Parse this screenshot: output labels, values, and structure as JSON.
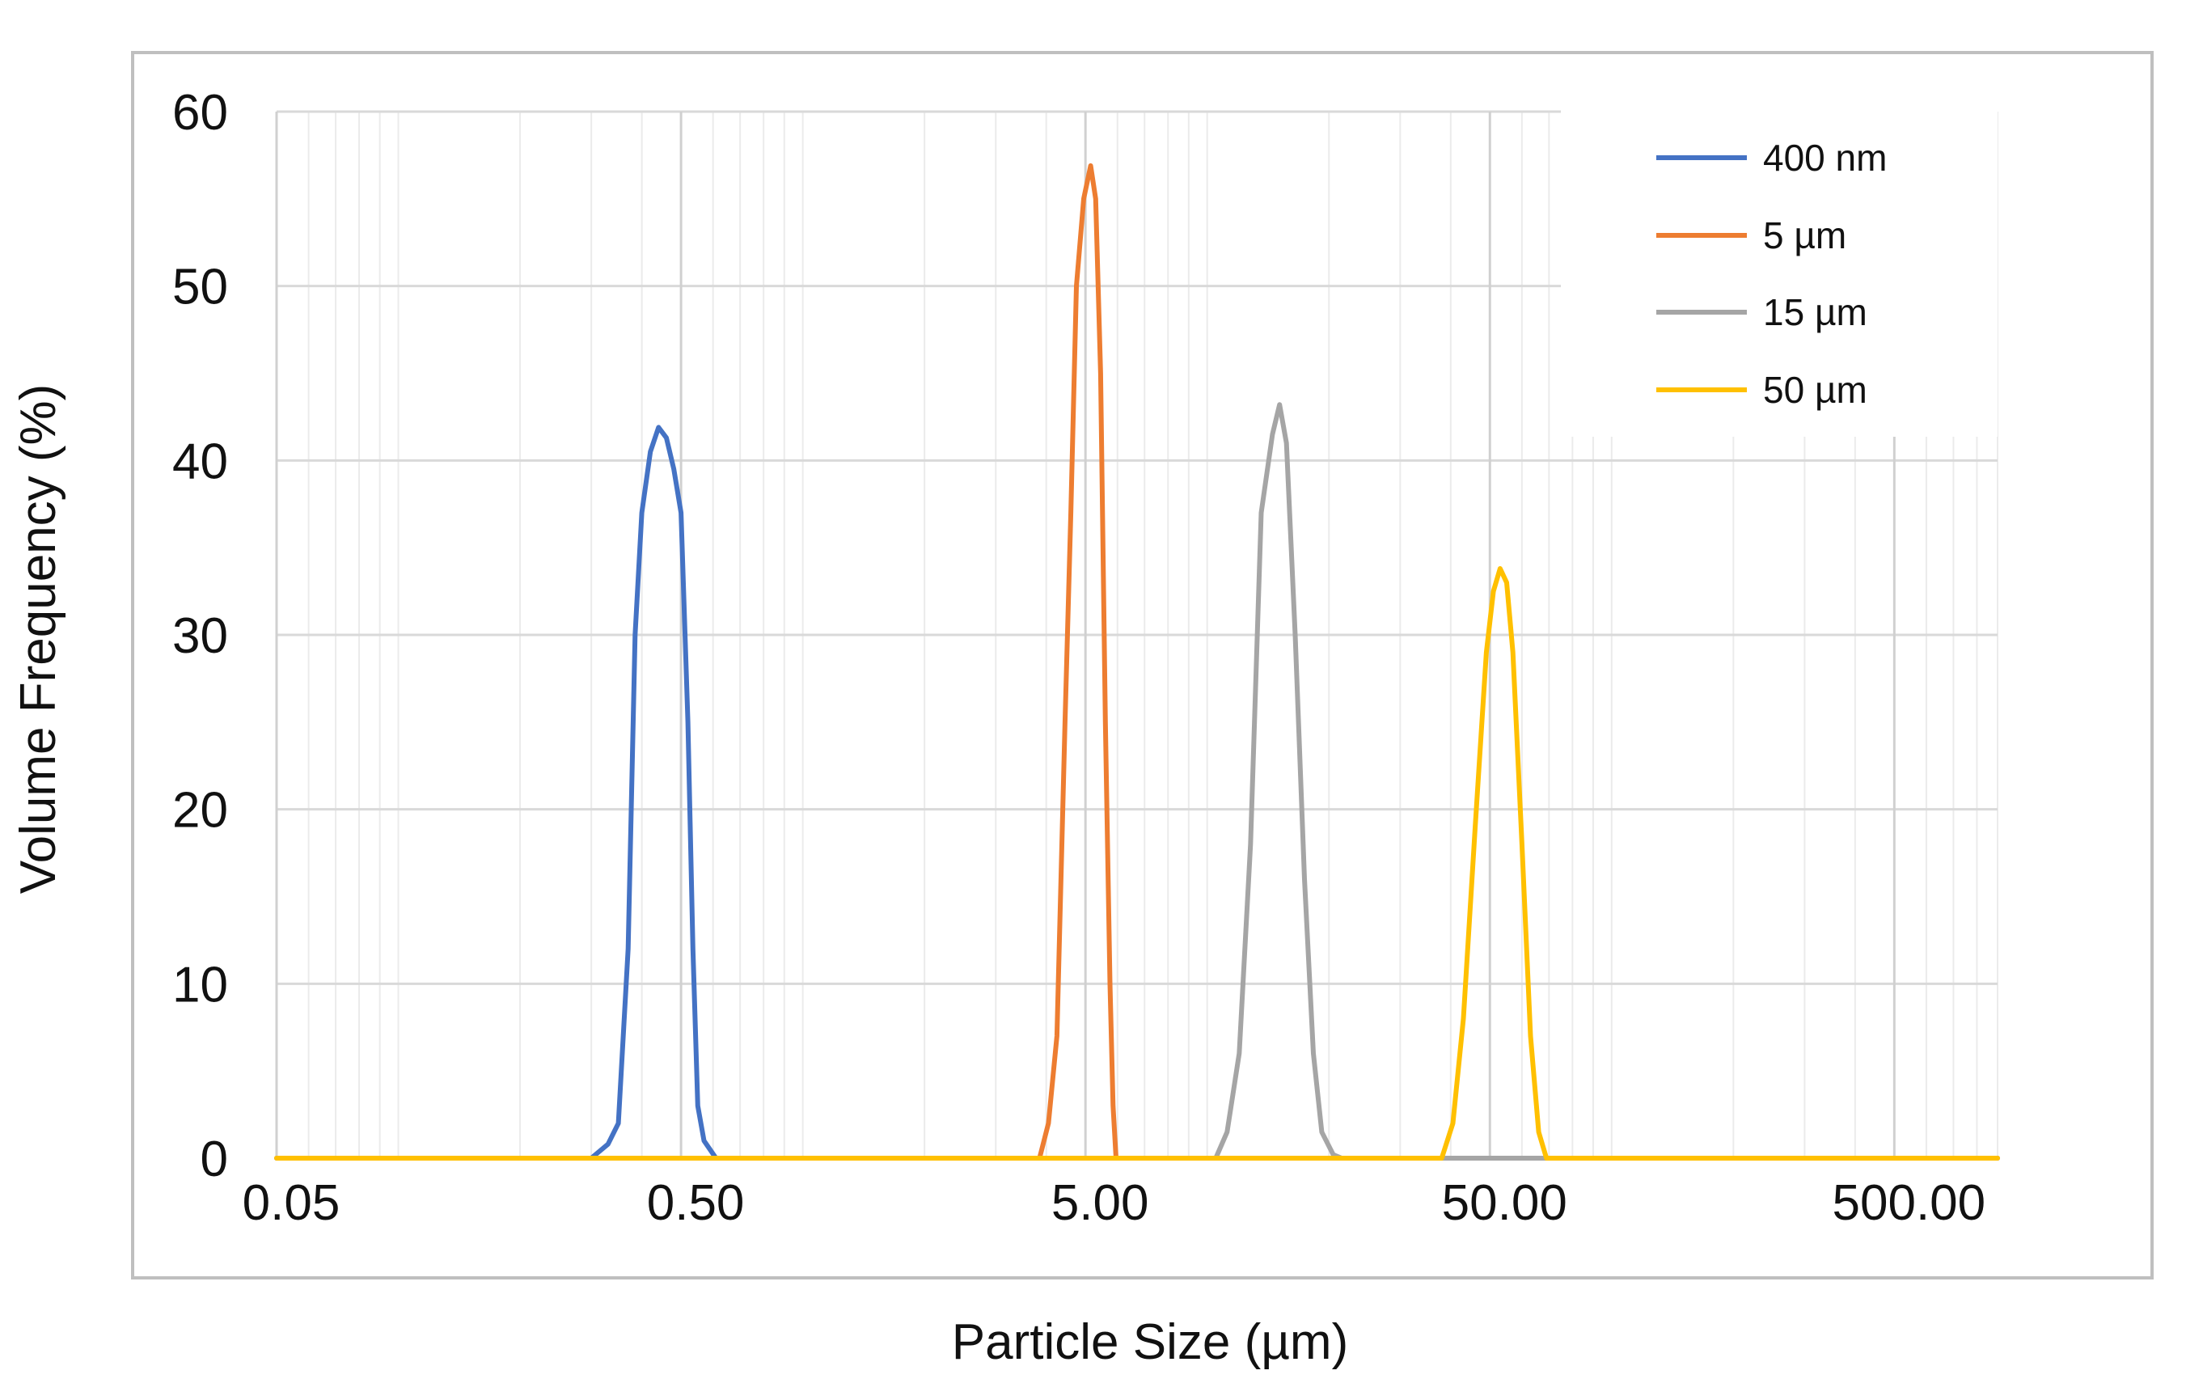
{
  "chart_data": {
    "type": "line",
    "title": "",
    "xlabel": "Particle Size (µm)",
    "ylabel": "Volume Frequency (%)",
    "xscale": "log",
    "xlim": [
      0.05,
      900
    ],
    "ylim": [
      0,
      60
    ],
    "x_ticks": [
      0.05,
      0.5,
      5,
      50,
      500
    ],
    "x_tick_labels": [
      "0.05",
      "0.50",
      "5.00",
      "50.00",
      "500.00"
    ],
    "y_ticks": [
      0,
      10,
      20,
      30,
      40,
      50,
      60
    ],
    "y_tick_labels": [
      "0",
      "10",
      "20",
      "30",
      "40",
      "50",
      "60"
    ],
    "grid": true,
    "legend_position": "top-right",
    "series": [
      {
        "name": "400 nm",
        "color": "#4472C4",
        "points": [
          [
            0.05,
            0
          ],
          [
            0.3,
            0
          ],
          [
            0.33,
            0.8
          ],
          [
            0.35,
            2
          ],
          [
            0.37,
            12
          ],
          [
            0.385,
            30
          ],
          [
            0.4,
            37
          ],
          [
            0.42,
            40.5
          ],
          [
            0.44,
            41.9
          ],
          [
            0.46,
            41.3
          ],
          [
            0.48,
            39.5
          ],
          [
            0.5,
            37
          ],
          [
            0.52,
            25
          ],
          [
            0.535,
            12
          ],
          [
            0.55,
            3
          ],
          [
            0.57,
            1
          ],
          [
            0.61,
            0
          ],
          [
            900,
            0
          ]
        ]
      },
      {
        "name": "5 µm",
        "color": "#ED7D31",
        "points": [
          [
            0.05,
            0
          ],
          [
            3.85,
            0
          ],
          [
            4.05,
            2
          ],
          [
            4.25,
            7
          ],
          [
            4.45,
            25
          ],
          [
            4.6,
            37
          ],
          [
            4.75,
            50
          ],
          [
            4.95,
            55
          ],
          [
            5.15,
            56.9
          ],
          [
            5.3,
            55
          ],
          [
            5.45,
            45
          ],
          [
            5.6,
            25
          ],
          [
            5.75,
            10
          ],
          [
            5.85,
            3
          ],
          [
            5.95,
            0
          ],
          [
            900,
            0
          ]
        ]
      },
      {
        "name": "15 µm",
        "color": "#A5A5A5",
        "points": [
          [
            0.05,
            0
          ],
          [
            10.5,
            0
          ],
          [
            11.2,
            1.5
          ],
          [
            12.0,
            6
          ],
          [
            12.8,
            18
          ],
          [
            13.6,
            37
          ],
          [
            14.5,
            41.5
          ],
          [
            15.1,
            43.2
          ],
          [
            15.7,
            41
          ],
          [
            16.5,
            30
          ],
          [
            17.4,
            16
          ],
          [
            18.3,
            6
          ],
          [
            19.2,
            1.5
          ],
          [
            20.5,
            0.2
          ],
          [
            21.5,
            0
          ],
          [
            900,
            0
          ]
        ]
      },
      {
        "name": "50 µm",
        "color": "#FFC000",
        "points": [
          [
            0.05,
            0
          ],
          [
            38,
            0
          ],
          [
            40.5,
            2
          ],
          [
            43,
            8
          ],
          [
            46,
            19
          ],
          [
            49,
            29
          ],
          [
            51,
            32.5
          ],
          [
            53,
            33.8
          ],
          [
            55,
            33
          ],
          [
            57,
            29
          ],
          [
            60,
            18
          ],
          [
            63,
            7
          ],
          [
            66,
            1.5
          ],
          [
            69,
            0
          ],
          [
            900,
            0
          ]
        ]
      }
    ]
  }
}
